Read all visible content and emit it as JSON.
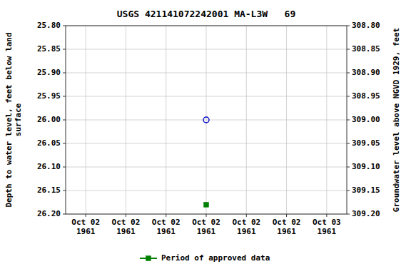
{
  "chart_data": {
    "type": "scatter",
    "title": "USGS 421141072242001 MA-L3W   69",
    "y_label": "Depth to water level, feet below land\nsurface",
    "y2_label": "Groundwater level above NGVD 1929, feet",
    "categories": [
      "Oct 02\n1961",
      "Oct 02\n1961",
      "Oct 02\n1961",
      "Oct 02\n1961",
      "Oct 02\n1961",
      "Oct 02\n1961",
      "Oct 03\n1961"
    ],
    "series": [
      {
        "color": "#0000cc",
        "marker": "open-circle",
        "line_style": "none",
        "values": [
          null,
          null,
          null,
          26.0,
          null,
          null,
          null
        ]
      },
      {
        "name": "Period of approved data",
        "color": "#008000",
        "marker": "square",
        "line_style": "none",
        "values": [
          null,
          null,
          null,
          26.18,
          null,
          null,
          null
        ]
      }
    ],
    "ylim": [
      26.2,
      25.8
    ],
    "yticks": [
      {
        "value": 25.8,
        "label": "25.80"
      },
      25.85,
      {
        "value": 25.9,
        "label": "25.90"
      },
      25.95,
      {
        "value": 26.0,
        "label": "26.00"
      },
      26.05,
      {
        "value": 26.1,
        "label": "26.10"
      },
      26.15,
      {
        "value": 26.2,
        "label": "26.20"
      }
    ],
    "y2lim": [
      309.2,
      308.8
    ],
    "y2ticks": [
      {
        "value": 309.2,
        "label": "309.20"
      },
      309.15,
      {
        "value": 309.1,
        "label": "309.10"
      },
      309.05,
      {
        "value": 309.0,
        "label": "309.00"
      },
      308.95,
      {
        "value": 308.9,
        "label": "308.90"
      },
      308.85,
      {
        "value": 308.8,
        "label": "308.80"
      }
    ],
    "grid": true,
    "legend": "bottom"
  }
}
